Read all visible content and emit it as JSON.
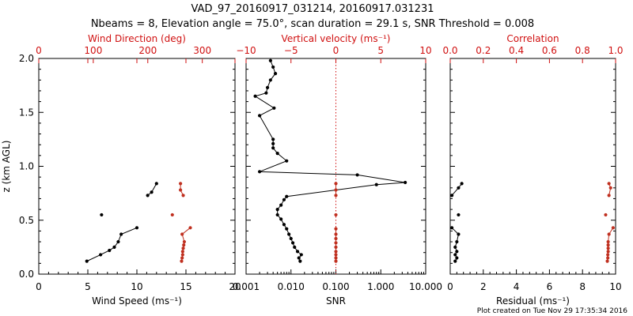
{
  "header": {
    "title_line1": "VAD_97_20160917_031214, 20160917.031231",
    "title_line2": "Nbeams = 8, Elevation angle = 75.0°, scan duration = 29.1 s, SNR Threshold = 0.008"
  },
  "footer": {
    "plot_created": "Plot created on Tue Nov 29 17:35:34 2016"
  },
  "colors": {
    "black": "#000000",
    "red": "#d01010",
    "marker_red": "#c03020",
    "dotted_red": "#d01010"
  },
  "y_axis": {
    "label": "z (km AGL)",
    "range": [
      0,
      2.0
    ],
    "ticks": [
      "0.0",
      "0.5",
      "1.0",
      "1.5",
      "2.0"
    ]
  },
  "chart_data": [
    {
      "id": "wind",
      "type": "scatter",
      "xlabel": "Wind Speed (ms⁻¹)",
      "x_range": [
        0,
        20
      ],
      "x_ticks": [
        "0",
        "5",
        "10",
        "15",
        "20"
      ],
      "top_label": "Wind Direction (deg)",
      "top_range": [
        0,
        360
      ],
      "top_ticks": [
        "0",
        "100",
        "200",
        "300"
      ],
      "series": [
        {
          "axis": "bottom",
          "color": "black",
          "segments": [
            [
              [
                4.9,
                0.12
              ],
              [
                6.3,
                0.18
              ],
              [
                7.2,
                0.22
              ],
              [
                7.7,
                0.25
              ],
              [
                8.1,
                0.3
              ],
              [
                8.4,
                0.37
              ],
              [
                10.0,
                0.43
              ]
            ],
            [
              [
                6.4,
                0.55
              ]
            ],
            [
              [
                11.1,
                0.73
              ],
              [
                11.5,
                0.76
              ],
              [
                12.0,
                0.84
              ]
            ]
          ]
        },
        {
          "axis": "top",
          "color": "marker_red",
          "segments": [
            [
              [
                262,
                0.12
              ],
              [
                263,
                0.15
              ],
              [
                264,
                0.18
              ],
              [
                264,
                0.21
              ],
              [
                265,
                0.24
              ],
              [
                266,
                0.27
              ],
              [
                267,
                0.3
              ],
              [
                263,
                0.37
              ],
              [
                278,
                0.43
              ]
            ],
            [
              [
                245,
                0.55
              ]
            ],
            [
              [
                265,
                0.73
              ],
              [
                260,
                0.78
              ],
              [
                260,
                0.84
              ]
            ]
          ]
        }
      ]
    },
    {
      "id": "snr",
      "type": "line",
      "xlabel": "SNR",
      "x_scale": "log",
      "x_range": [
        0.001,
        10.0
      ],
      "x_ticks": [
        "0.001",
        "0.010",
        "0.100",
        "1.000",
        "10.000"
      ],
      "top_label": "Vertical velocity (ms⁻¹)",
      "top_range": [
        -10,
        10
      ],
      "top_ticks": [
        "−10",
        "−5",
        "0",
        "5",
        "10"
      ],
      "reference_line": {
        "top_value": 0,
        "style": "dotted"
      },
      "series": [
        {
          "axis": "bottom",
          "color": "black",
          "segments": [
            [
              [
                0.016,
                0.12
              ],
              [
                0.015,
                0.15
              ],
              [
                0.017,
                0.18
              ],
              [
                0.014,
                0.21
              ],
              [
                0.012,
                0.25
              ],
              [
                0.011,
                0.29
              ],
              [
                0.01,
                0.33
              ],
              [
                0.009,
                0.37
              ],
              [
                0.008,
                0.42
              ],
              [
                0.007,
                0.46
              ],
              [
                0.006,
                0.51
              ],
              [
                0.005,
                0.55
              ],
              [
                0.005,
                0.6
              ],
              [
                0.006,
                0.64
              ],
              [
                0.007,
                0.69
              ],
              [
                0.008,
                0.72
              ],
              [
                0.8,
                0.83
              ],
              [
                3.5,
                0.85
              ],
              [
                0.3,
                0.92
              ],
              [
                0.002,
                0.95
              ],
              [
                0.008,
                1.05
              ],
              [
                0.005,
                1.12
              ],
              [
                0.004,
                1.17
              ],
              [
                0.004,
                1.21
              ],
              [
                0.004,
                1.25
              ],
              [
                0.002,
                1.47
              ],
              [
                0.0042,
                1.54
              ],
              [
                0.0016,
                1.65
              ],
              [
                0.0028,
                1.68
              ],
              [
                0.003,
                1.73
              ],
              [
                0.0035,
                1.8
              ],
              [
                0.0045,
                1.86
              ],
              [
                0.004,
                1.92
              ],
              [
                0.0035,
                1.98
              ]
            ]
          ]
        },
        {
          "axis": "top",
          "color": "marker_red",
          "segments": [
            [
              [
                0,
                0.12
              ],
              [
                0,
                0.15
              ],
              [
                0,
                0.18
              ],
              [
                0,
                0.21
              ],
              [
                0,
                0.25
              ],
              [
                0,
                0.29
              ],
              [
                0,
                0.33
              ],
              [
                0,
                0.37
              ],
              [
                0,
                0.42
              ]
            ],
            [
              [
                0,
                0.55
              ]
            ],
            [
              [
                0,
                0.73
              ],
              [
                0,
                0.78
              ],
              [
                0,
                0.84
              ]
            ]
          ]
        }
      ]
    },
    {
      "id": "residual",
      "type": "scatter",
      "xlabel": "Residual (ms⁻¹)",
      "x_range": [
        0,
        10
      ],
      "x_ticks": [
        "0",
        "2",
        "4",
        "6",
        "8",
        "10"
      ],
      "top_label": "Correlation",
      "top_range": [
        0.0,
        1.0
      ],
      "top_ticks": [
        "0.0",
        "0.2",
        "0.4",
        "0.6",
        "0.8",
        "1.0"
      ],
      "series": [
        {
          "axis": "bottom",
          "color": "black",
          "segments": [
            [
              [
                0.3,
                0.12
              ],
              [
                0.4,
                0.15
              ],
              [
                0.3,
                0.18
              ],
              [
                0.4,
                0.21
              ],
              [
                0.3,
                0.25
              ],
              [
                0.4,
                0.3
              ],
              [
                0.5,
                0.37
              ],
              [
                0.1,
                0.43
              ]
            ],
            [
              [
                0.5,
                0.55
              ]
            ],
            [
              [
                0.1,
                0.73
              ],
              [
                0.5,
                0.8
              ],
              [
                0.7,
                0.84
              ]
            ]
          ]
        },
        {
          "axis": "top",
          "color": "marker_red",
          "segments": [
            [
              [
                0.95,
                0.12
              ],
              [
                0.953,
                0.15
              ],
              [
                0.953,
                0.18
              ],
              [
                0.955,
                0.21
              ],
              [
                0.955,
                0.24
              ],
              [
                0.955,
                0.27
              ],
              [
                0.955,
                0.3
              ],
              [
                0.96,
                0.37
              ],
              [
                0.985,
                0.43
              ]
            ],
            [
              [
                0.94,
                0.55
              ]
            ],
            [
              [
                0.96,
                0.73
              ],
              [
                0.97,
                0.8
              ],
              [
                0.96,
                0.84
              ]
            ]
          ]
        }
      ]
    }
  ]
}
